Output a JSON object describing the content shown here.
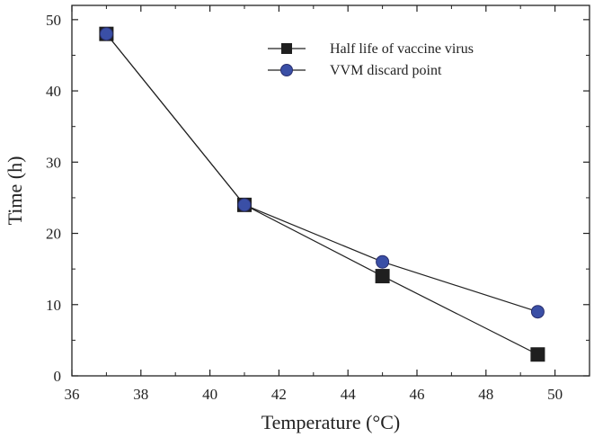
{
  "chart_data": {
    "type": "line",
    "title": "",
    "xlabel": "Temperature (°C)",
    "ylabel": "Time (h)",
    "xlim": [
      36,
      51
    ],
    "ylim": [
      0,
      52
    ],
    "xticks": [
      36,
      38,
      40,
      42,
      44,
      46,
      48,
      50
    ],
    "yticks": [
      0,
      10,
      20,
      30,
      40,
      50
    ],
    "grid": false,
    "legend_position": "top-right",
    "series": [
      {
        "name": "Half life of vaccine virus",
        "marker": "square",
        "color": "#1f1f1f",
        "x": [
          37,
          41,
          45,
          49.5
        ],
        "y": [
          48,
          24,
          14,
          3
        ]
      },
      {
        "name": "VVM discard point",
        "marker": "circle",
        "color": "#3a4fa6",
        "x": [
          37,
          41,
          45,
          49.5
        ],
        "y": [
          48,
          24,
          16,
          9
        ]
      }
    ]
  }
}
